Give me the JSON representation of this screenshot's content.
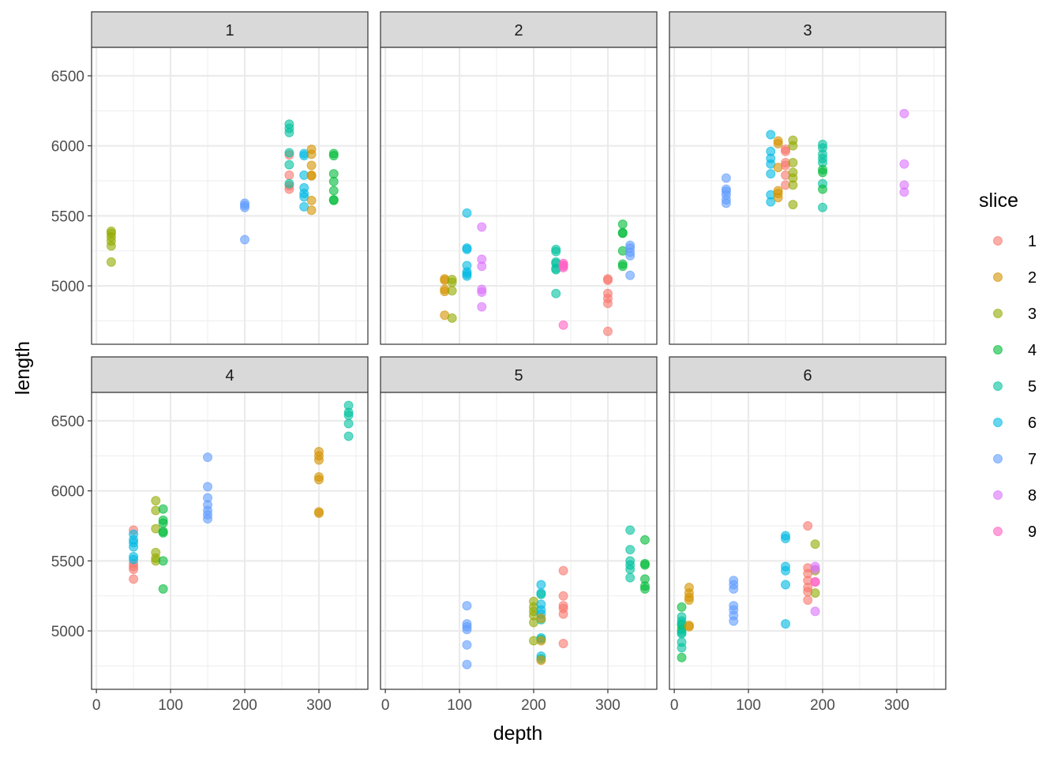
{
  "chart_data": {
    "type": "scatter",
    "facet_variable": "panel",
    "facets": [
      "1",
      "2",
      "3",
      "4",
      "5",
      "6"
    ],
    "xlabel": "depth",
    "ylabel": "length",
    "xlim": [
      -6.5,
      366
    ],
    "ylim": [
      4583,
      6703
    ],
    "x_ticks": [
      0,
      100,
      200,
      300
    ],
    "x_tick_labels": [
      "0",
      "100",
      "200",
      "300"
    ],
    "x_minor_ticks": [
      50,
      150,
      250,
      350
    ],
    "y_ticks": [
      5000,
      5500,
      6000,
      6500
    ],
    "y_tick_labels": [
      "5000",
      "5500",
      "6000",
      "6500"
    ],
    "y_minor_ticks": [
      4750,
      5250,
      5750,
      6250
    ],
    "grid": true,
    "legend": {
      "title": "slice",
      "position": "right",
      "entries": [
        "1",
        "2",
        "3",
        "4",
        "5",
        "6",
        "7",
        "8",
        "9"
      ],
      "colors": [
        "#F8766D",
        "#D39200",
        "#93AA00",
        "#00BA38",
        "#00C19F",
        "#00B9E3",
        "#619CFF",
        "#DB72FB",
        "#FF61C3"
      ]
    },
    "point_alpha": 0.6,
    "panels": [
      {
        "facet": "1",
        "points": [
          {
            "slice": 3,
            "depth": 20,
            "length": [
              5390,
              5375,
              5350,
              5320,
              5285,
              5170
            ]
          },
          {
            "slice": 7,
            "depth": 200,
            "length": [
              5590,
              5575,
              5560,
              5330
            ]
          },
          {
            "slice": 1,
            "depth": 260,
            "length": [
              5935,
              5790,
              5715,
              5690
            ]
          },
          {
            "slice": 5,
            "depth": 260,
            "length": [
              6155,
              6125,
              6095,
              5950,
              5865,
              5730
            ]
          },
          {
            "slice": 6,
            "depth": 280,
            "length": [
              5945,
              5930,
              5790,
              5700,
              5660,
              5635,
              5565
            ]
          },
          {
            "slice": 2,
            "depth": 290,
            "length": [
              5975,
              5940,
              5860,
              5790,
              5785,
              5610,
              5540
            ]
          },
          {
            "slice": 4,
            "depth": 320,
            "length": [
              5945,
              5930,
              5800,
              5745,
              5680,
              5615,
              5610
            ]
          }
        ]
      },
      {
        "facet": "2",
        "points": [
          {
            "slice": 2,
            "depth": 80,
            "length": [
              5050,
              5040,
              4975,
              4960,
              4790
            ]
          },
          {
            "slice": 3,
            "depth": 90,
            "length": [
              5045,
              5025,
              4965,
              4770
            ]
          },
          {
            "slice": 6,
            "depth": 110,
            "length": [
              5520,
              5270,
              5260,
              5145,
              5100,
              5085,
              5070
            ]
          },
          {
            "slice": 8,
            "depth": 130,
            "length": [
              5420,
              5190,
              5140,
              4975,
              4955,
              4850
            ]
          },
          {
            "slice": 5,
            "depth": 230,
            "length": [
              5260,
              5245,
              5170,
              5160,
              5125,
              5115,
              4945
            ]
          },
          {
            "slice": 9,
            "depth": 240,
            "length": [
              5160,
              5150,
              5140,
              5130,
              4720
            ]
          },
          {
            "slice": 1,
            "depth": 300,
            "length": [
              5050,
              5040,
              4945,
              4910,
              4875,
              4675
            ]
          },
          {
            "slice": 4,
            "depth": 320,
            "length": [
              5440,
              5380,
              5375,
              5250,
              5155,
              5140
            ]
          },
          {
            "slice": 7,
            "depth": 330,
            "length": [
              5290,
              5270,
              5240,
              5215,
              5075
            ]
          }
        ]
      },
      {
        "facet": "3",
        "points": [
          {
            "slice": 7,
            "depth": 70,
            "length": [
              5770,
              5690,
              5675,
              5650,
              5615,
              5590
            ]
          },
          {
            "slice": 6,
            "depth": 130,
            "length": [
              6080,
              5960,
              5910,
              5870,
              5800,
              5650,
              5600
            ]
          },
          {
            "slice": 2,
            "depth": 140,
            "length": [
              6035,
              6015,
              5845,
              5680,
              5660,
              5630
            ]
          },
          {
            "slice": 1,
            "depth": 150,
            "length": [
              5975,
              5960,
              5880,
              5860,
              5790,
              5720
            ]
          },
          {
            "slice": 3,
            "depth": 160,
            "length": [
              6040,
              6000,
              5880,
              5810,
              5770,
              5720,
              5580
            ]
          },
          {
            "slice": 5,
            "depth": 200,
            "length": [
              6010,
              5985,
              5940,
              5910,
              5880,
              5730,
              5560
            ]
          },
          {
            "slice": 4,
            "depth": 200,
            "length": [
              5830,
              5810,
              5690
            ]
          },
          {
            "slice": 8,
            "depth": 310,
            "length": [
              6230,
              5870,
              5720,
              5670
            ]
          }
        ]
      },
      {
        "facet": "4",
        "points": [
          {
            "slice": 1,
            "depth": 50,
            "length": [
              5720,
              5480,
              5460,
              5440,
              5370
            ]
          },
          {
            "slice": 6,
            "depth": 50,
            "length": [
              5690,
              5650,
              5630,
              5600,
              5530,
              5510
            ]
          },
          {
            "slice": 3,
            "depth": 80,
            "length": [
              5930,
              5860,
              5730,
              5560,
              5520,
              5500
            ]
          },
          {
            "slice": 4,
            "depth": 90,
            "length": [
              5870,
              5790,
              5770,
              5710,
              5700,
              5500,
              5300
            ]
          },
          {
            "slice": 7,
            "depth": 150,
            "length": [
              6240,
              6030,
              5950,
              5900,
              5860,
              5830,
              5800
            ]
          },
          {
            "slice": 2,
            "depth": 300,
            "length": [
              6280,
              6250,
              6220,
              6100,
              6080,
              5850,
              5840
            ]
          },
          {
            "slice": 5,
            "depth": 340,
            "length": [
              6610,
              6560,
              6540,
              6480,
              6390
            ]
          }
        ]
      },
      {
        "facet": "5",
        "points": [
          {
            "slice": 7,
            "depth": 110,
            "length": [
              5180,
              5050,
              5030,
              5010,
              4900,
              4760
            ]
          },
          {
            "slice": 3,
            "depth": 200,
            "length": [
              5210,
              5170,
              5140,
              5110,
              5060,
              4930
            ]
          },
          {
            "slice": 6,
            "depth": 210,
            "length": [
              5330,
              5270,
              5190,
              5150,
              5120,
              4950,
              4820
            ]
          },
          {
            "slice": 5,
            "depth": 210,
            "length": [
              5260,
              5080,
              4940,
              4800
            ]
          },
          {
            "slice": 2,
            "depth": 210,
            "length": [
              5090,
              4930,
              4790
            ]
          },
          {
            "slice": 1,
            "depth": 240,
            "length": [
              5430,
              5250,
              5180,
              5160,
              5120,
              4910
            ]
          },
          {
            "slice": 5,
            "depth": 330,
            "length": [
              5720,
              5580,
              5500,
              5470,
              5440,
              5380
            ]
          },
          {
            "slice": 4,
            "depth": 350,
            "length": [
              5650,
              5480,
              5470,
              5370,
              5320,
              5300
            ]
          }
        ]
      },
      {
        "facet": "6",
        "points": [
          {
            "slice": 4,
            "depth": 10,
            "length": [
              5170,
              5040,
              5010,
              4810
            ]
          },
          {
            "slice": 5,
            "depth": 10,
            "length": [
              5100,
              5070,
              5050,
              4990,
              4980,
              4920,
              4880
            ]
          },
          {
            "slice": 2,
            "depth": 20,
            "length": [
              5310,
              5270,
              5240,
              5220,
              5040,
              5030
            ]
          },
          {
            "slice": 7,
            "depth": 80,
            "length": [
              5360,
              5330,
              5300,
              5180,
              5150,
              5110,
              5070
            ]
          },
          {
            "slice": 6,
            "depth": 150,
            "length": [
              5680,
              5660,
              5460,
              5430,
              5330,
              5050
            ]
          },
          {
            "slice": 1,
            "depth": 180,
            "length": [
              5750,
              5450,
              5410,
              5360,
              5310,
              5280,
              5220
            ]
          },
          {
            "slice": 3,
            "depth": 190,
            "length": [
              5620,
              5430,
              5270
            ]
          },
          {
            "slice": 8,
            "depth": 190,
            "length": [
              5460,
              5440,
              5140
            ]
          },
          {
            "slice": 9,
            "depth": 190,
            "length": [
              5350,
              5350
            ]
          }
        ]
      }
    ]
  }
}
